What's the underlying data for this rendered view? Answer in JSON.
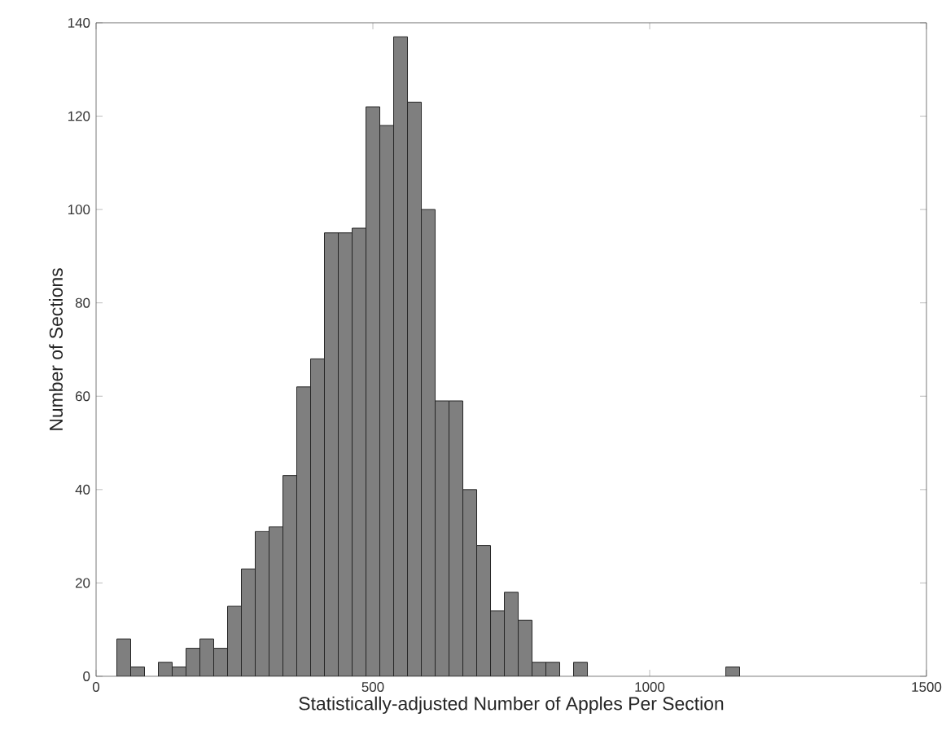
{
  "chart_data": {
    "type": "histogram",
    "xlabel": "Statistically-adjusted Number of Apples Per Section",
    "ylabel": "Number of Sections",
    "bins": [
      37.5,
      62.5,
      87.5,
      112.5,
      137.5,
      162.5,
      187.5,
      212.5,
      237.5,
      262.5,
      287.5,
      312.5,
      337.5,
      362.5,
      387.5,
      412.5,
      437.5,
      462.5,
      487.5,
      512.5,
      537.5,
      562.5,
      587.5,
      612.5,
      637.5,
      662.5,
      687.5,
      712.5,
      737.5,
      762.5,
      787.5,
      812.5,
      837.5,
      862.5,
      887.5,
      912.5,
      937.5,
      962.5,
      987.5,
      1012.5,
      1037.5,
      1062.5,
      1087.5,
      1112.5,
      1137.5,
      1162.5
    ],
    "values": [
      8,
      2,
      0,
      3,
      2,
      6,
      8,
      6,
      15,
      23,
      31,
      32,
      43,
      62,
      68,
      95,
      95,
      96,
      122,
      118,
      137,
      123,
      100,
      59,
      59,
      40,
      28,
      14,
      18,
      12,
      3,
      3,
      0,
      3,
      0,
      0,
      0,
      0,
      0,
      0,
      0,
      0,
      0,
      0,
      2
    ],
    "color": "#7f7f7f",
    "xlim": [
      0,
      1500
    ],
    "ylim": [
      0,
      140
    ],
    "xticks": [
      0,
      500,
      1000,
      1500
    ],
    "yticks": [
      0,
      20,
      40,
      60,
      80,
      100,
      120,
      140
    ],
    "grid": false
  }
}
